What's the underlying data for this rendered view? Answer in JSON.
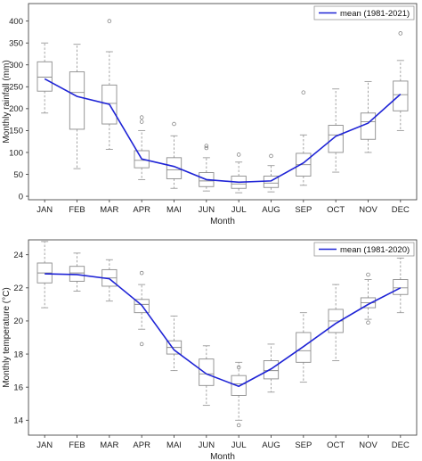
{
  "chart_data": [
    {
      "type": "box",
      "categories": [
        "JAN",
        "FEB",
        "MAR",
        "APR",
        "MAI",
        "JUN",
        "JUL",
        "AUG",
        "SEP",
        "OCT",
        "NOV",
        "DEC"
      ],
      "xlabel": "Month",
      "ylabel": "Monthly rainfall (mm)",
      "ylim": [
        -8,
        440
      ],
      "yticks": [
        0,
        50,
        100,
        150,
        200,
        250,
        300,
        350,
        400
      ],
      "legend": {
        "label": "mean (1981-2021)",
        "position": "top-right"
      },
      "series": [
        {
          "values": [
            268,
            228,
            210,
            85,
            68,
            38,
            32,
            35,
            76,
            137,
            167,
            233
          ]
        }
      ],
      "boxes": [
        {
          "whisker_low": 190,
          "q1": 240,
          "median": 272,
          "q3": 307,
          "whisker_high": 350,
          "outliers": []
        },
        {
          "whisker_low": 63,
          "q1": 153,
          "median": 237,
          "q3": 284,
          "whisker_high": 347,
          "outliers": []
        },
        {
          "whisker_low": 107,
          "q1": 165,
          "median": 212,
          "q3": 254,
          "whisker_high": 330,
          "outliers": [
            400
          ]
        },
        {
          "whisker_low": 38,
          "q1": 65,
          "median": 82,
          "q3": 104,
          "whisker_high": 150,
          "outliers": [
            180,
            170
          ]
        },
        {
          "whisker_low": 18,
          "q1": 40,
          "median": 60,
          "q3": 88,
          "whisker_high": 138,
          "outliers": [
            165
          ]
        },
        {
          "whisker_low": 12,
          "q1": 22,
          "median": 35,
          "q3": 54,
          "whisker_high": 88,
          "outliers": [
            110,
            115
          ]
        },
        {
          "whisker_low": 8,
          "q1": 18,
          "median": 28,
          "q3": 46,
          "whisker_high": 78,
          "outliers": [
            95
          ]
        },
        {
          "whisker_low": 10,
          "q1": 20,
          "median": 30,
          "q3": 46,
          "whisker_high": 70,
          "outliers": [
            92
          ]
        },
        {
          "whisker_low": 25,
          "q1": 46,
          "median": 72,
          "q3": 98,
          "whisker_high": 140,
          "outliers": [
            237
          ]
        },
        {
          "whisker_low": 55,
          "q1": 100,
          "median": 140,
          "q3": 162,
          "whisker_high": 245,
          "outliers": []
        },
        {
          "whisker_low": 100,
          "q1": 130,
          "median": 170,
          "q3": 190,
          "whisker_high": 262,
          "outliers": []
        },
        {
          "whisker_low": 150,
          "q1": 195,
          "median": 232,
          "q3": 263,
          "whisker_high": 310,
          "outliers": [
            372
          ]
        }
      ],
      "colors": {
        "mean_line": "#1f24d6",
        "box": "#8c8c8c",
        "whisker": "#9a9a9a"
      }
    },
    {
      "type": "box",
      "categories": [
        "JAN",
        "FEB",
        "MAR",
        "APR",
        "MAI",
        "JUN",
        "JUL",
        "AUG",
        "SEP",
        "OCT",
        "NOV",
        "DEC"
      ],
      "xlabel": "Month",
      "ylabel": "Monthly temperature (°C)",
      "ylim": [
        13.1,
        24.9
      ],
      "yticks": [
        14,
        16,
        18,
        20,
        22,
        24
      ],
      "legend": {
        "label": "mean (1981-2020)",
        "position": "top-right"
      },
      "series": [
        {
          "values": [
            22.85,
            22.8,
            22.55,
            20.95,
            18.25,
            16.8,
            16.05,
            17.1,
            18.45,
            19.85,
            21.0,
            22.0
          ]
        }
      ],
      "boxes": [
        {
          "whisker_low": 20.8,
          "q1": 22.3,
          "median": 22.9,
          "q3": 23.5,
          "whisker_high": 24.8,
          "outliers": []
        },
        {
          "whisker_low": 21.8,
          "q1": 22.4,
          "median": 22.9,
          "q3": 23.3,
          "whisker_high": 24.1,
          "outliers": []
        },
        {
          "whisker_low": 21.2,
          "q1": 22.1,
          "median": 22.6,
          "q3": 23.1,
          "whisker_high": 23.7,
          "outliers": []
        },
        {
          "whisker_low": 19.5,
          "q1": 20.5,
          "median": 21.0,
          "q3": 21.3,
          "whisker_high": 22.2,
          "outliers": [
            22.9,
            18.6
          ]
        },
        {
          "whisker_low": 17.0,
          "q1": 18.0,
          "median": 18.4,
          "q3": 18.8,
          "whisker_high": 20.3,
          "outliers": []
        },
        {
          "whisker_low": 14.9,
          "q1": 16.1,
          "median": 16.8,
          "q3": 17.7,
          "whisker_high": 18.5,
          "outliers": []
        },
        {
          "whisker_low": 14.0,
          "q1": 15.5,
          "median": 16.2,
          "q3": 16.7,
          "whisker_high": 17.5,
          "outliers": [
            13.7,
            17.2
          ]
        },
        {
          "whisker_low": 15.7,
          "q1": 16.5,
          "median": 17.0,
          "q3": 17.6,
          "whisker_high": 18.6,
          "outliers": []
        },
        {
          "whisker_low": 16.3,
          "q1": 17.5,
          "median": 18.2,
          "q3": 19.3,
          "whisker_high": 20.5,
          "outliers": []
        },
        {
          "whisker_low": 17.6,
          "q1": 19.3,
          "median": 20.0,
          "q3": 20.7,
          "whisker_high": 22.2,
          "outliers": []
        },
        {
          "whisker_low": 20.1,
          "q1": 20.8,
          "median": 21.1,
          "q3": 21.4,
          "whisker_high": 22.5,
          "outliers": [
            22.8,
            19.9
          ]
        },
        {
          "whisker_low": 20.5,
          "q1": 21.6,
          "median": 22.0,
          "q3": 22.5,
          "whisker_high": 23.8,
          "outliers": []
        }
      ],
      "colors": {
        "mean_line": "#1f24d6",
        "box": "#8c8c8c",
        "whisker": "#9a9a9a"
      }
    }
  ]
}
